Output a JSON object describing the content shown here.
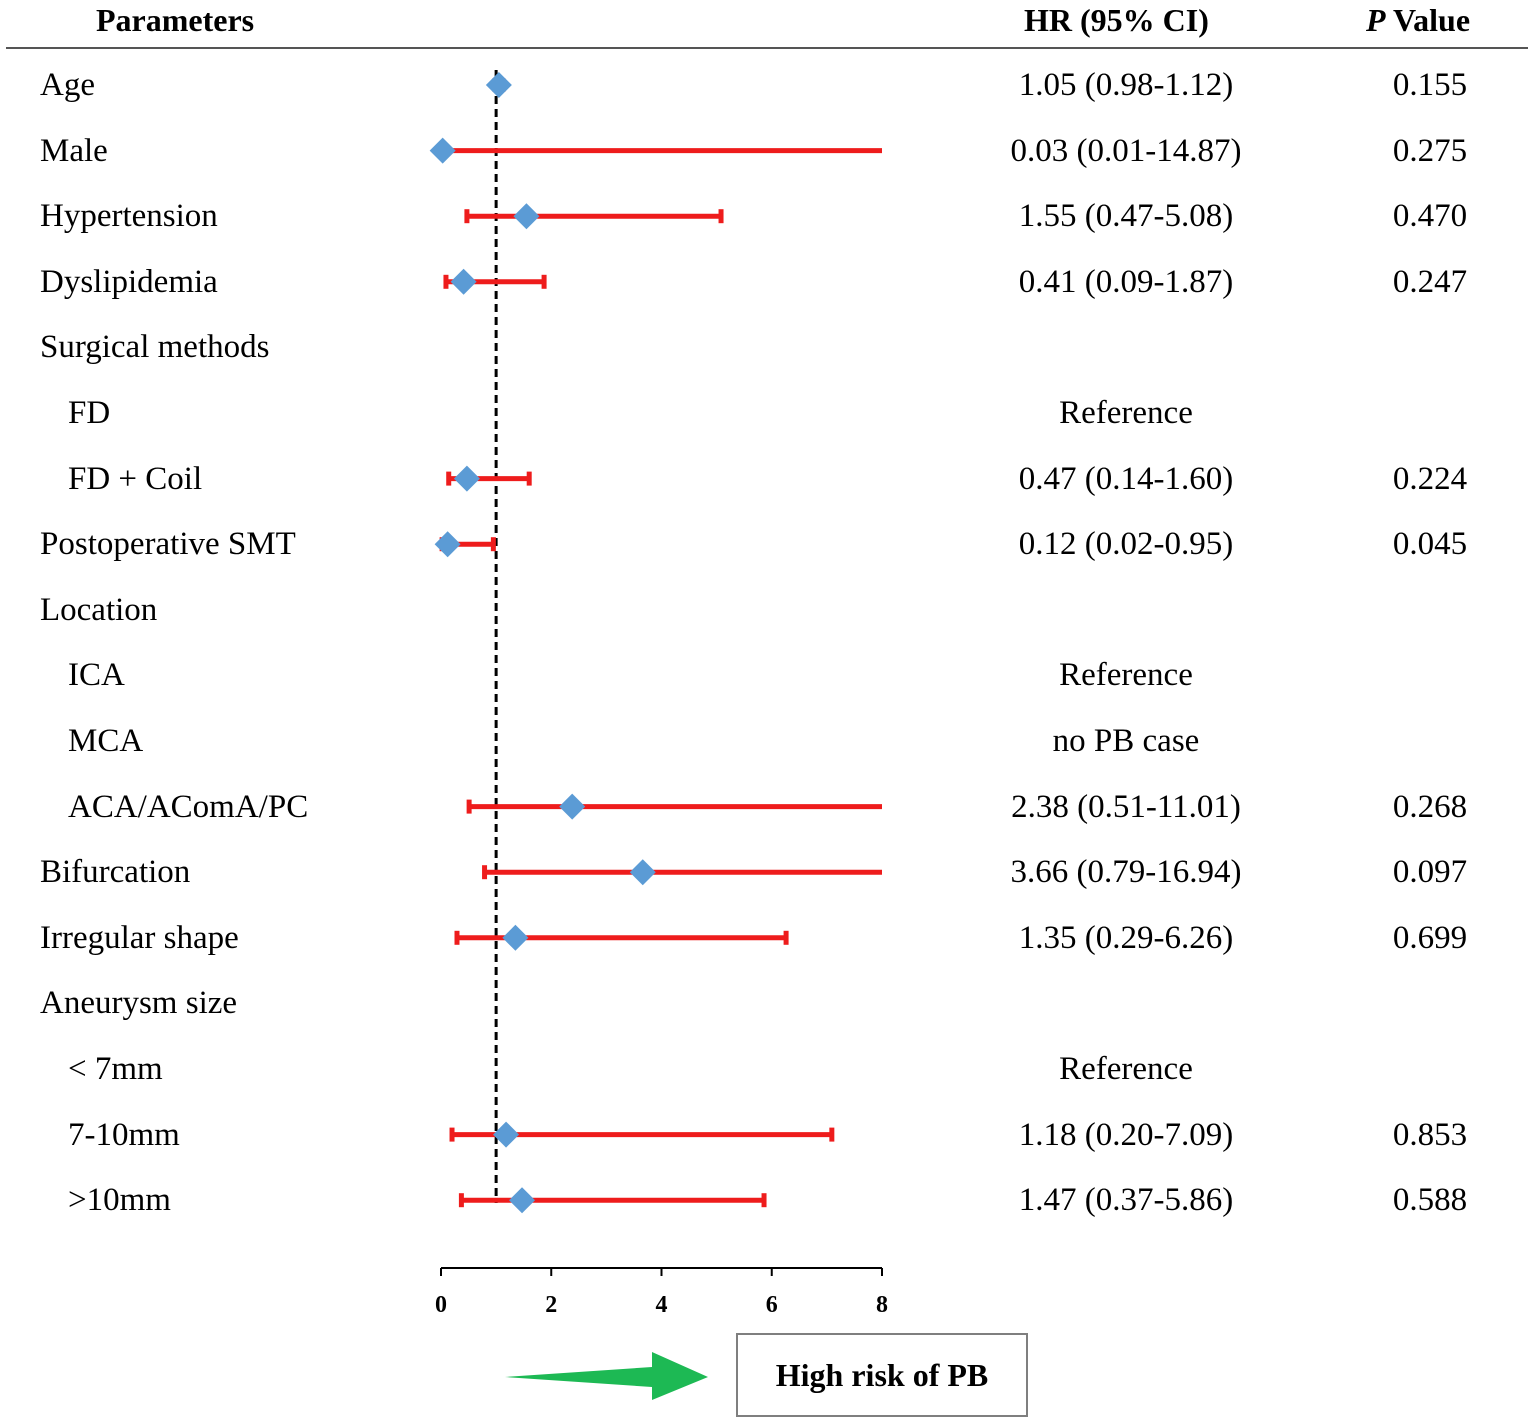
{
  "header": {
    "parameters": "Parameters",
    "hr": "HR (95% CI)",
    "p_italic": "P",
    "p_rest": " Value"
  },
  "rows": [
    {
      "label": "Age",
      "indent": false,
      "hr_text": "1.05 (0.98-1.12)",
      "p": "0.155"
    },
    {
      "label": "Male",
      "indent": false,
      "hr_text": "0.03 (0.01-14.87)",
      "p": "0.275"
    },
    {
      "label": "Hypertension",
      "indent": false,
      "hr_text": "1.55 (0.47-5.08)",
      "p": "0.470"
    },
    {
      "label": "Dyslipidemia",
      "indent": false,
      "hr_text": "0.41 (0.09-1.87)",
      "p": "0.247"
    },
    {
      "label": "Surgical methods",
      "indent": false,
      "hr_text": "",
      "p": ""
    },
    {
      "label": "FD",
      "indent": true,
      "hr_text": "Reference",
      "p": ""
    },
    {
      "label": "FD + Coil",
      "indent": true,
      "hr_text": "0.47 (0.14-1.60)",
      "p": "0.224"
    },
    {
      "label": "Postoperative SMT",
      "indent": false,
      "hr_text": "0.12 (0.02-0.95)",
      "p": "0.045"
    },
    {
      "label": "Location",
      "indent": false,
      "hr_text": "",
      "p": ""
    },
    {
      "label": "ICA",
      "indent": true,
      "hr_text": "Reference",
      "p": ""
    },
    {
      "label": "MCA",
      "indent": true,
      "hr_text": "no PB case",
      "p": ""
    },
    {
      "label": "ACA/AComA/PC",
      "indent": true,
      "hr_text": "2.38 (0.51-11.01)",
      "p": "0.268"
    },
    {
      "label": "Bifurcation",
      "indent": false,
      "hr_text": "3.66 (0.79-16.94)",
      "p": "0.097"
    },
    {
      "label": "Irregular shape",
      "indent": false,
      "hr_text": "1.35 (0.29-6.26)",
      "p": "0.699"
    },
    {
      "label": "Aneurysm size",
      "indent": false,
      "hr_text": "",
      "p": ""
    },
    {
      "label": "< 7mm",
      "indent": true,
      "hr_text": "Reference",
      "p": ""
    },
    {
      "label": "7-10mm",
      "indent": true,
      "hr_text": "1.18 (0.20-7.09)",
      "p": "0.853"
    },
    {
      "label": ">10mm",
      "indent": true,
      "hr_text": "1.47 (0.37-5.86)",
      "p": "0.588"
    }
  ],
  "risk_label": "High risk of PB",
  "colors": {
    "ci_line": "#ee1c1c",
    "marker": "#5b9bd5",
    "arrow": "#1db954",
    "axis": "#000000",
    "reference_line": "#000000"
  },
  "chart_data": {
    "type": "forest",
    "title": "",
    "xlabel": "",
    "ylabel": "",
    "xlim": [
      0,
      8
    ],
    "xticks": [
      0,
      2,
      4,
      6,
      8
    ],
    "reference_value": 1,
    "categories": [
      "Age",
      "Male",
      "Hypertension",
      "Dyslipidemia",
      "Surgical methods",
      "FD",
      "FD + Coil",
      "Postoperative SMT",
      "Location",
      "ICA",
      "MCA",
      "ACA/AComA/PC",
      "Bifurcation",
      "Irregular shape",
      "Aneurysm size",
      "< 7mm",
      "7-10mm",
      ">10mm"
    ],
    "hr": [
      1.05,
      0.03,
      1.55,
      0.41,
      null,
      null,
      0.47,
      0.12,
      null,
      null,
      null,
      2.38,
      3.66,
      1.35,
      null,
      null,
      1.18,
      1.47
    ],
    "lower": [
      0.98,
      0.01,
      0.47,
      0.09,
      null,
      null,
      0.14,
      0.02,
      null,
      null,
      null,
      0.51,
      0.79,
      0.29,
      null,
      null,
      0.2,
      0.37
    ],
    "upper": [
      1.12,
      14.87,
      5.08,
      1.87,
      null,
      null,
      1.6,
      0.95,
      null,
      null,
      null,
      11.01,
      16.94,
      6.26,
      null,
      null,
      7.09,
      5.86
    ]
  }
}
